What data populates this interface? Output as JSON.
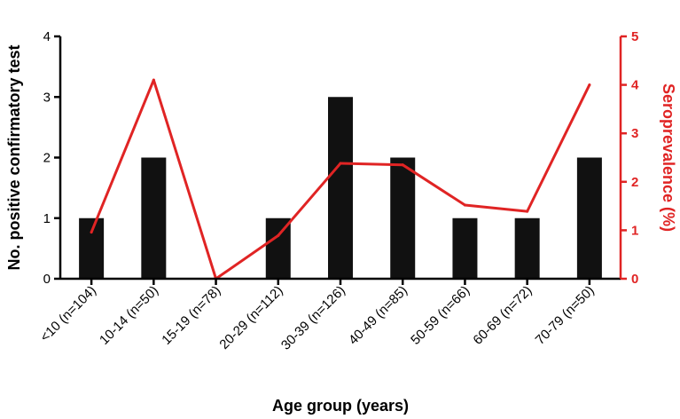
{
  "chart_data": {
    "type": "bar",
    "categories": [
      "<10 (n=104)",
      "10-14 (n=50)",
      "15-19 (n=78)",
      "20-29 (n=112)",
      "30-39 (n=126)",
      "40-49 (n=85)",
      "50-59 (n=66)",
      "60-69 (n=72)",
      "70-79 (n=50)"
    ],
    "title": "",
    "xlabel": "Age group (years)",
    "ylabel": "No. positive confirmatory test",
    "y2label": "Seroprevalence (%)",
    "ylim": [
      0,
      4
    ],
    "y2lim": [
      0,
      5
    ],
    "yticks": [
      "0",
      "1",
      "2",
      "3",
      "4"
    ],
    "y2ticks": [
      "0",
      "1",
      "2",
      "3",
      "4",
      "5"
    ],
    "grid": false,
    "series": [
      {
        "type": "bar",
        "axis": "left",
        "color": "#111111",
        "values": [
          1,
          2,
          0,
          1,
          3,
          2,
          1,
          1,
          2
        ]
      },
      {
        "type": "line",
        "axis": "right",
        "color": "#e02424",
        "values": [
          0.96,
          4.1,
          0,
          0.89,
          2.38,
          2.35,
          1.52,
          1.39,
          4.0
        ]
      }
    ]
  }
}
